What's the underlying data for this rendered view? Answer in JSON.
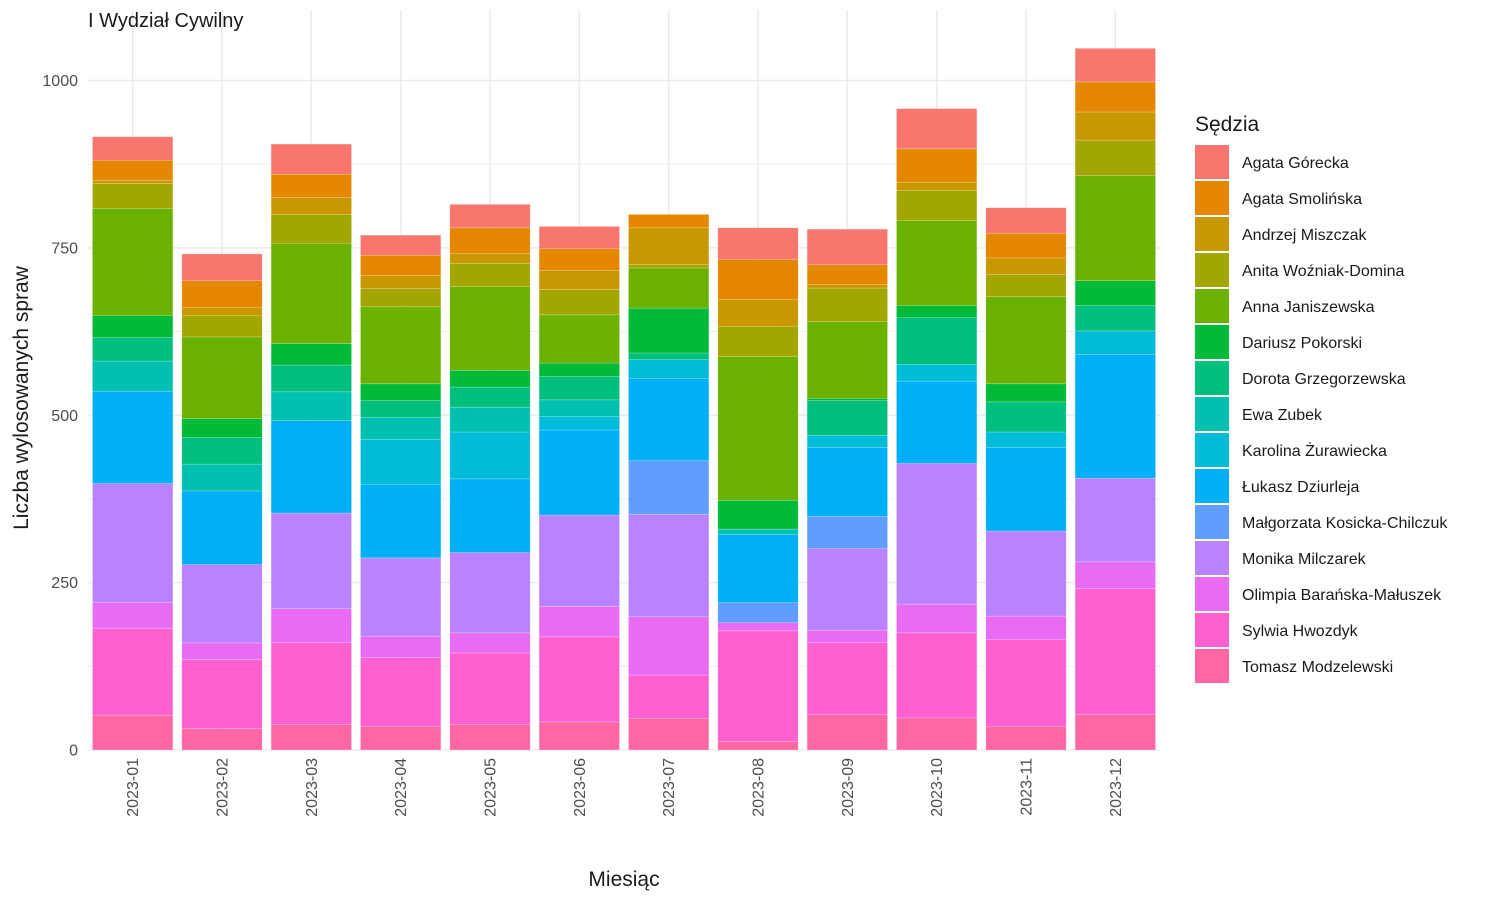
{
  "chart_data": {
    "type": "bar",
    "stacked": true,
    "title": "I Wydział Cywilny",
    "xlabel": "Miesiąc",
    "ylabel": "Liczba wylosowanych spraw",
    "ylim": [
      0,
      1060
    ],
    "yticks": [
      0,
      250,
      500,
      750,
      1000
    ],
    "grid": true,
    "legend": {
      "title": "Sędzia",
      "position": "right"
    },
    "categories": [
      "2023-01",
      "2023-02",
      "2023-03",
      "2023-04",
      "2023-05",
      "2023-06",
      "2023-07",
      "2023-08",
      "2023-09",
      "2023-10",
      "2023-11",
      "2023-12"
    ],
    "series": [
      {
        "name": "Agata Górecka",
        "color": "#F8766D",
        "values": [
          35,
          40,
          45,
          30,
          35,
          33,
          0,
          47,
          53,
          60,
          38,
          50
        ]
      },
      {
        "name": "Agata Smolińska",
        "color": "#E58700",
        "values": [
          30,
          40,
          35,
          30,
          38,
          33,
          20,
          60,
          30,
          50,
          37,
          45
        ]
      },
      {
        "name": "Andrzej Miszczak",
        "color": "#C99800",
        "values": [
          5,
          12,
          25,
          20,
          15,
          28,
          55,
          40,
          5,
          12,
          25,
          42
        ]
      },
      {
        "name": "Anita Woźniak-Domina",
        "color": "#A3A500",
        "values": [
          37,
          32,
          43,
          27,
          35,
          38,
          5,
          45,
          50,
          45,
          33,
          53
        ]
      },
      {
        "name": "Anna Janiszewska",
        "color": "#6BB100",
        "values": [
          160,
          122,
          150,
          115,
          125,
          72,
          60,
          215,
          115,
          127,
          130,
          157
        ]
      },
      {
        "name": "Dariusz Pokorski",
        "color": "#00BA38",
        "values": [
          33,
          28,
          32,
          25,
          25,
          20,
          67,
          43,
          3,
          18,
          27,
          37
        ]
      },
      {
        "name": "Dorota Grzegorzewska",
        "color": "#00BF7D",
        "values": [
          35,
          40,
          40,
          25,
          30,
          35,
          10,
          0,
          52,
          70,
          45,
          38
        ]
      },
      {
        "name": "Ewa Zubek",
        "color": "#00C0AF",
        "values": [
          45,
          40,
          43,
          33,
          37,
          25,
          0,
          8,
          0,
          0,
          0,
          0
        ]
      },
      {
        "name": "Karolina Żurawiecka",
        "color": "#00BCD8",
        "values": [
          0,
          0,
          0,
          67,
          70,
          20,
          28,
          0,
          18,
          25,
          23,
          35
        ]
      },
      {
        "name": "Łukasz Dziurleja",
        "color": "#00B0F6",
        "values": [
          138,
          110,
          138,
          110,
          110,
          127,
          123,
          102,
          103,
          123,
          125,
          185
        ]
      },
      {
        "name": "Małgorzata Kosicka-Chilczuk",
        "color": "#619CFF",
        "values": [
          0,
          0,
          0,
          0,
          0,
          0,
          80,
          30,
          48,
          0,
          0,
          0
        ]
      },
      {
        "name": "Monika Milczarek",
        "color": "#B983FF",
        "values": [
          178,
          117,
          143,
          117,
          120,
          137,
          153,
          0,
          122,
          210,
          127,
          125
        ]
      },
      {
        "name": "Olimpia Barańska-Małuszek",
        "color": "#E76BF3",
        "values": [
          38,
          25,
          50,
          32,
          30,
          45,
          87,
          12,
          18,
          43,
          35,
          40
        ]
      },
      {
        "name": "Sylwia Hwozdyk",
        "color": "#FD61D1",
        "values": [
          130,
          103,
          123,
          103,
          107,
          127,
          65,
          165,
          108,
          127,
          130,
          188
        ]
      },
      {
        "name": "Tomasz Modzelewski",
        "color": "#FF67A4",
        "values": [
          52,
          32,
          38,
          35,
          38,
          42,
          47,
          13,
          53,
          48,
          35,
          53
        ]
      }
    ]
  }
}
